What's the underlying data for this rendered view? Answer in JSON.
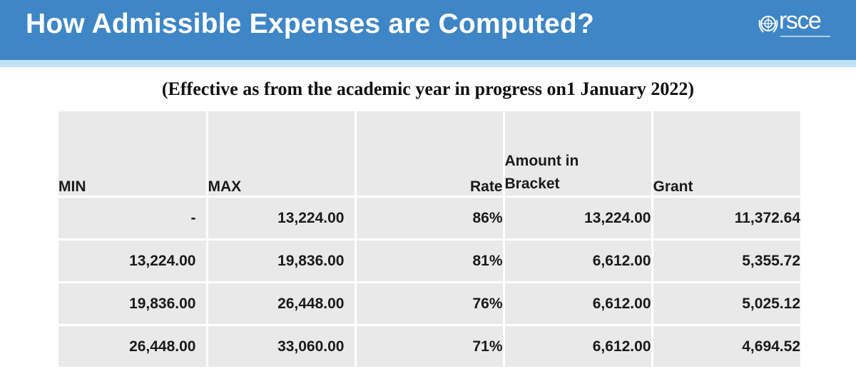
{
  "header": {
    "title": "How Admissible Expenses are Computed?",
    "logo_text": "rsce",
    "logo_icon": "un-emblem-icon"
  },
  "subtitle": "(Effective as from the academic year in progress on1 January 2022)",
  "colors": {
    "header_bg": "#3f86c6",
    "header_line": "#bfe0f5",
    "table_cell": "#e9e9e9"
  },
  "table": {
    "headers": {
      "min": "MIN",
      "max": "MAX",
      "rate": "Rate",
      "amount_line1": "Amount in",
      "amount_line2": "Bracket",
      "grant": "Grant"
    },
    "rows": [
      {
        "min": "-",
        "max": "13,224.00",
        "rate": "86%",
        "amount": "13,224.00",
        "grant": "11,372.64"
      },
      {
        "min": "13,224.00",
        "max": "19,836.00",
        "rate": "81%",
        "amount": "6,612.00",
        "grant": "5,355.72"
      },
      {
        "min": "19,836.00",
        "max": "26,448.00",
        "rate": "76%",
        "amount": "6,612.00",
        "grant": "5,025.12"
      },
      {
        "min": "26,448.00",
        "max": "33,060.00",
        "rate": "71%",
        "amount": "6,612.00",
        "grant": "4,694.52"
      }
    ]
  }
}
